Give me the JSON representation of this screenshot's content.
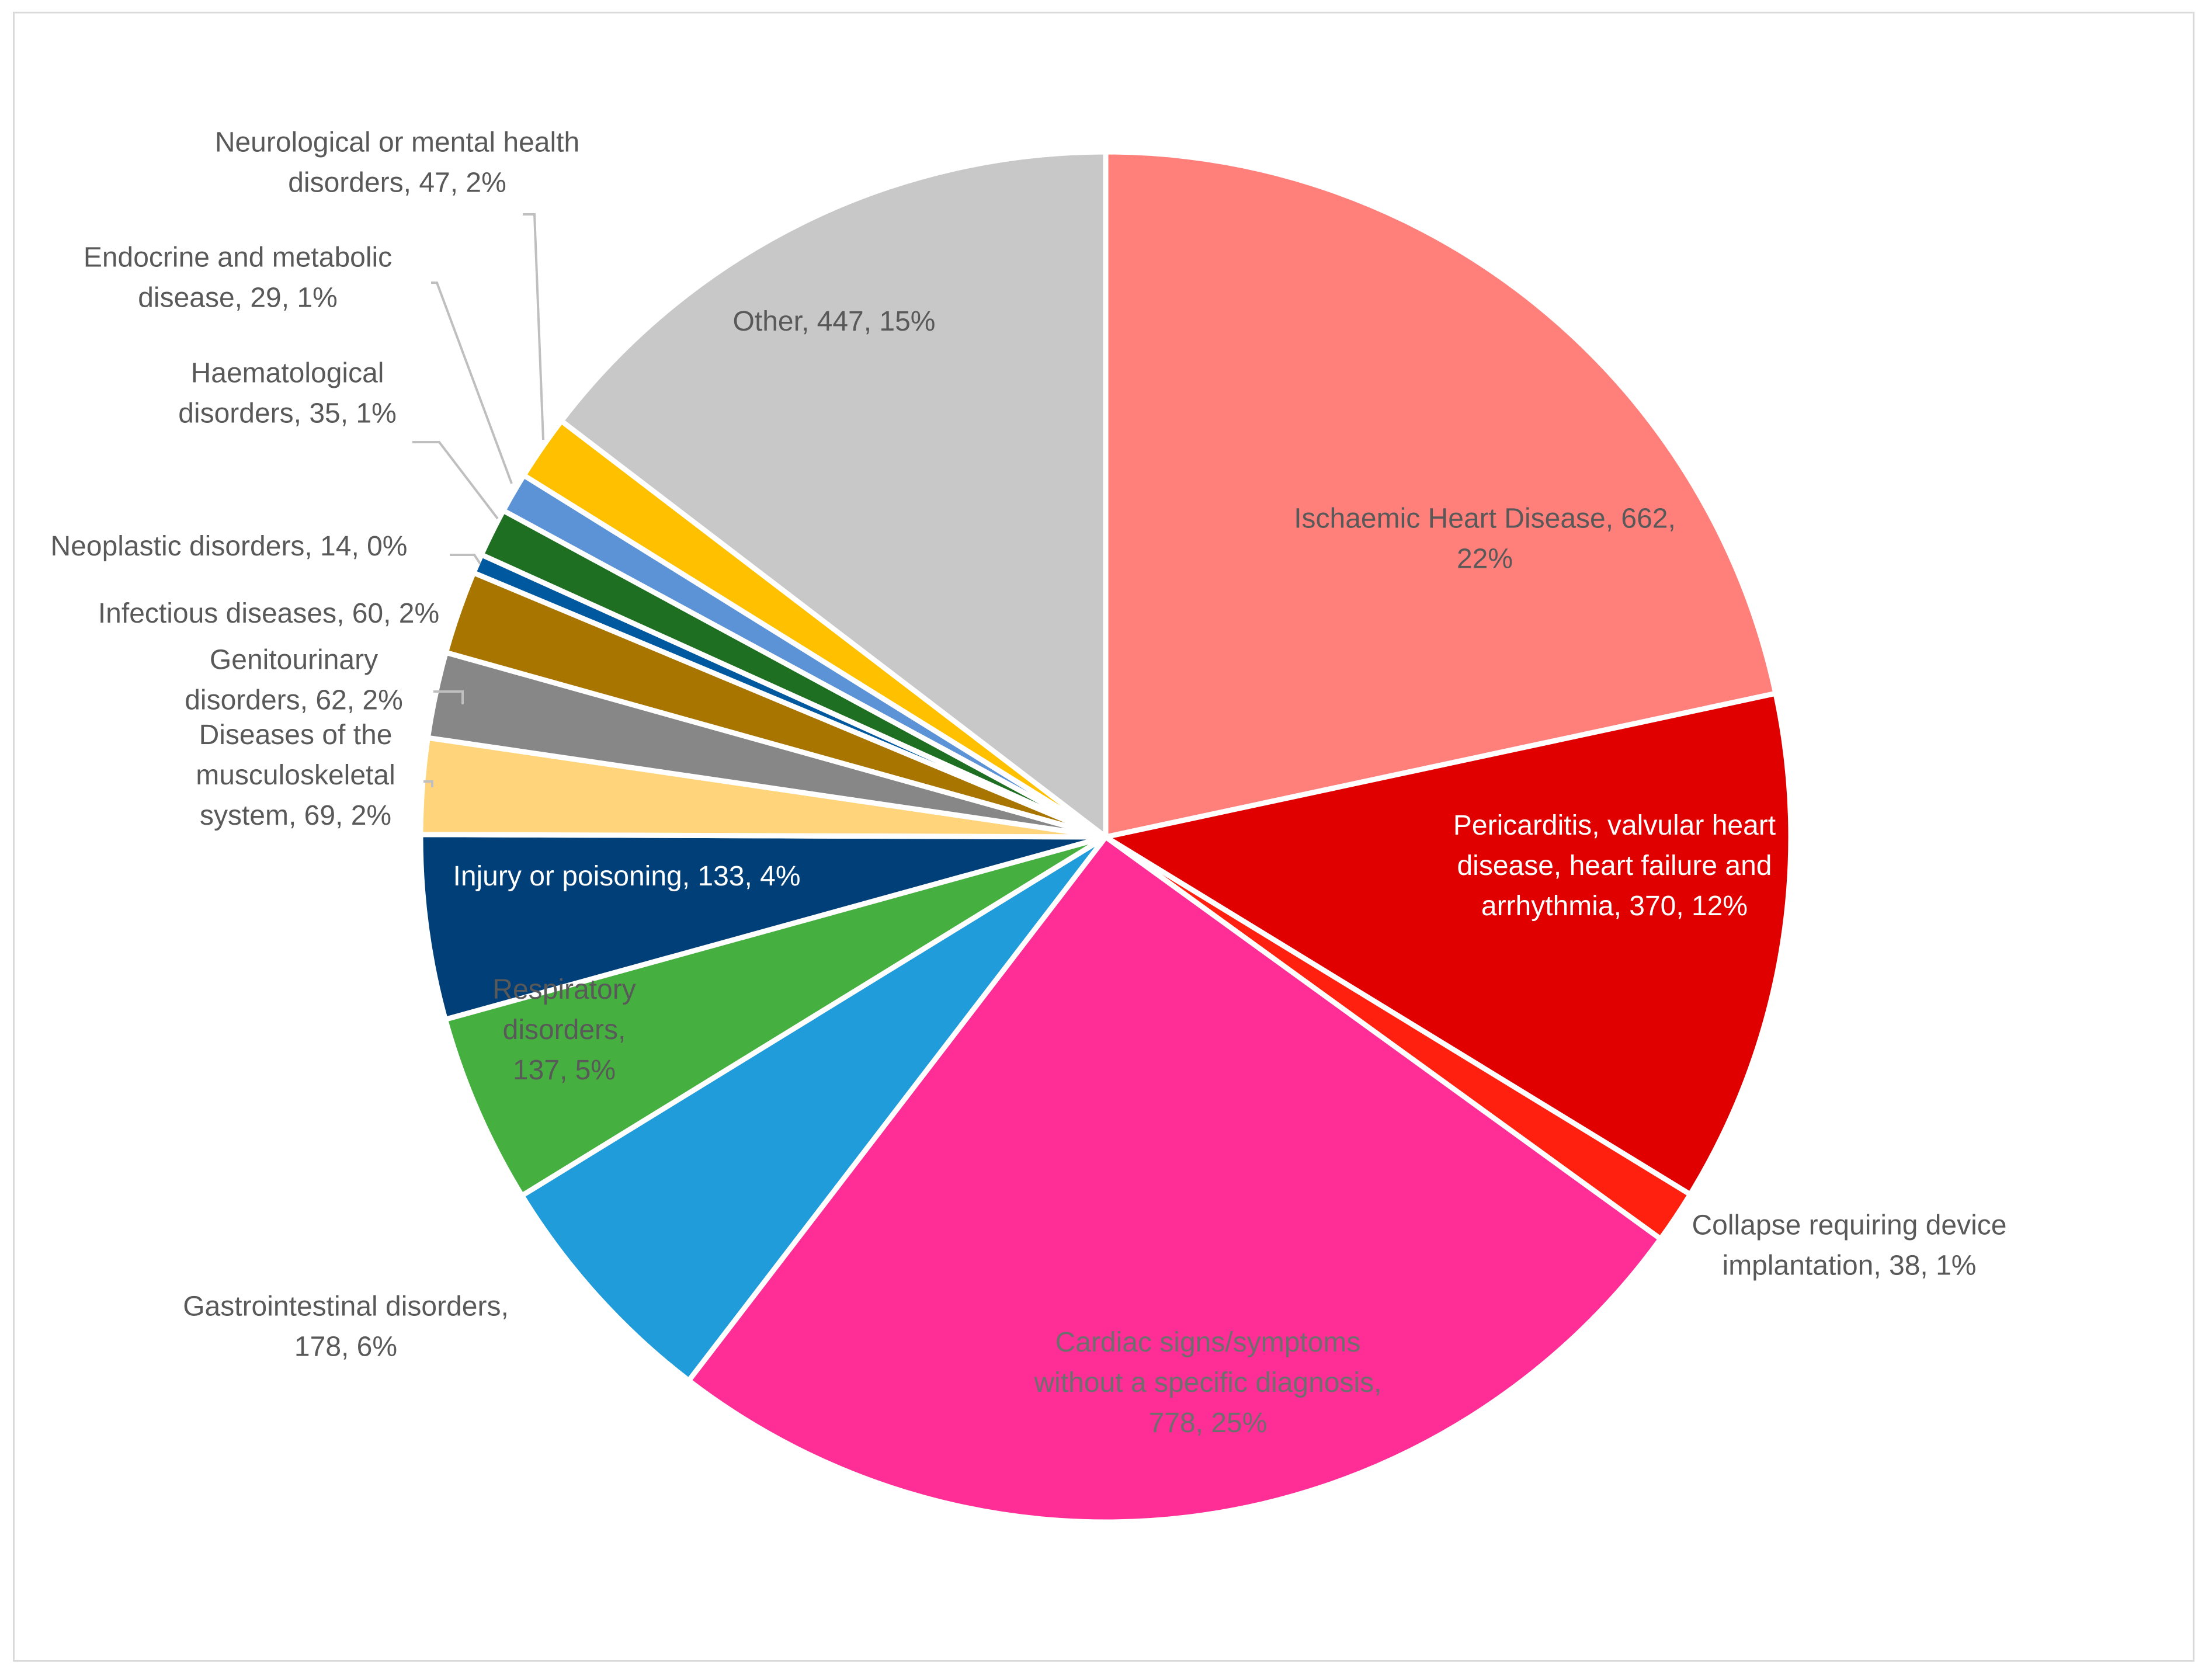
{
  "chart_data": {
    "type": "pie",
    "title": "",
    "start_angle_deg": 0,
    "direction": "clockwise",
    "slices": [
      {
        "label": "Ischaemic Heart Disease",
        "value": 662,
        "percent": "22%",
        "display": [
          "Ischaemic Heart Disease, 662,",
          "22%"
        ],
        "color": "#ff7f7b",
        "text_color": "#595959"
      },
      {
        "label": "Pericarditis, valvular heart disease, heart failure and arrhythmia",
        "value": 370,
        "percent": "12%",
        "display": [
          "Pericarditis, valvular heart",
          "disease, heart failure and",
          "arrhythmia, 370, 12%"
        ],
        "color": "#e00000",
        "text_color": "#ffffff"
      },
      {
        "label": "Collapse requiring device implantation",
        "value": 38,
        "percent": "1%",
        "display": [
          "Collapse requiring device",
          "implantation, 38, 1%"
        ],
        "color": "#ff2010",
        "text_color": "#595959"
      },
      {
        "label": "Cardiac signs/symptoms without a specific diagnosis",
        "value": 778,
        "percent": "25%",
        "display": [
          "Cardiac signs/symptoms",
          "without a specific diagnosis,",
          "778, 25%"
        ],
        "color": "#ff2d96",
        "text_color": "#6e6e6e"
      },
      {
        "label": "Gastrointestinal disorders",
        "value": 178,
        "percent": "6%",
        "display": [
          "Gastrointestinal disorders,",
          "178, 6%"
        ],
        "color": "#1f9cd9",
        "text_color": "#595959"
      },
      {
        "label": "Respiratory disorders",
        "value": 137,
        "percent": "5%",
        "display": [
          "Respiratory",
          "disorders,",
          "137, 5%"
        ],
        "color": "#45b03f",
        "text_color": "#595959"
      },
      {
        "label": "Injury or poisoning",
        "value": 133,
        "percent": "4%",
        "display": [
          "Injury or poisoning, 133, 4%"
        ],
        "color": "#003f77",
        "text_color": "#ffffff"
      },
      {
        "label": "Diseases of the musculoskeletal system",
        "value": 69,
        "percent": "2%",
        "display": [
          "Diseases of the",
          "musculoskeletal",
          "system, 69, 2%"
        ],
        "color": "#ffd47a",
        "text_color": "#595959"
      },
      {
        "label": "Genitourinary disorders",
        "value": 62,
        "percent": "2%",
        "display": [
          "Genitourinary",
          "disorders, 62, 2%"
        ],
        "color": "#878787",
        "text_color": "#595959"
      },
      {
        "label": "Infectious diseases",
        "value": 60,
        "percent": "2%",
        "display": [
          "Infectious diseases, 60, 2%"
        ],
        "color": "#a87500",
        "text_color": "#595959"
      },
      {
        "label": "Neoplastic disorders",
        "value": 14,
        "percent": "0%",
        "display": [
          "Neoplastic disorders, 14, 0%"
        ],
        "color": "#00589e",
        "text_color": "#595959"
      },
      {
        "label": "Haematological disorders",
        "value": 35,
        "percent": "1%",
        "display": [
          "Haematological",
          "disorders, 35, 1%"
        ],
        "color": "#1e6f22",
        "text_color": "#595959"
      },
      {
        "label": "Endocrine and metabolic disease",
        "value": 29,
        "percent": "1%",
        "display": [
          "Endocrine and metabolic",
          "disease, 29, 1%"
        ],
        "color": "#5b93d6",
        "text_color": "#595959"
      },
      {
        "label": "Neurological or mental health disorders",
        "value": 47,
        "percent": "2%",
        "display": [
          "Neurological or mental health",
          "disorders, 47, 2%"
        ],
        "color": "#ffc000",
        "text_color": "#595959"
      },
      {
        "label": "Other",
        "value": 447,
        "percent": "15%",
        "display": [
          "Other, 447, 15%"
        ],
        "color": "#c8c8c8",
        "text_color": "#595959"
      }
    ]
  }
}
